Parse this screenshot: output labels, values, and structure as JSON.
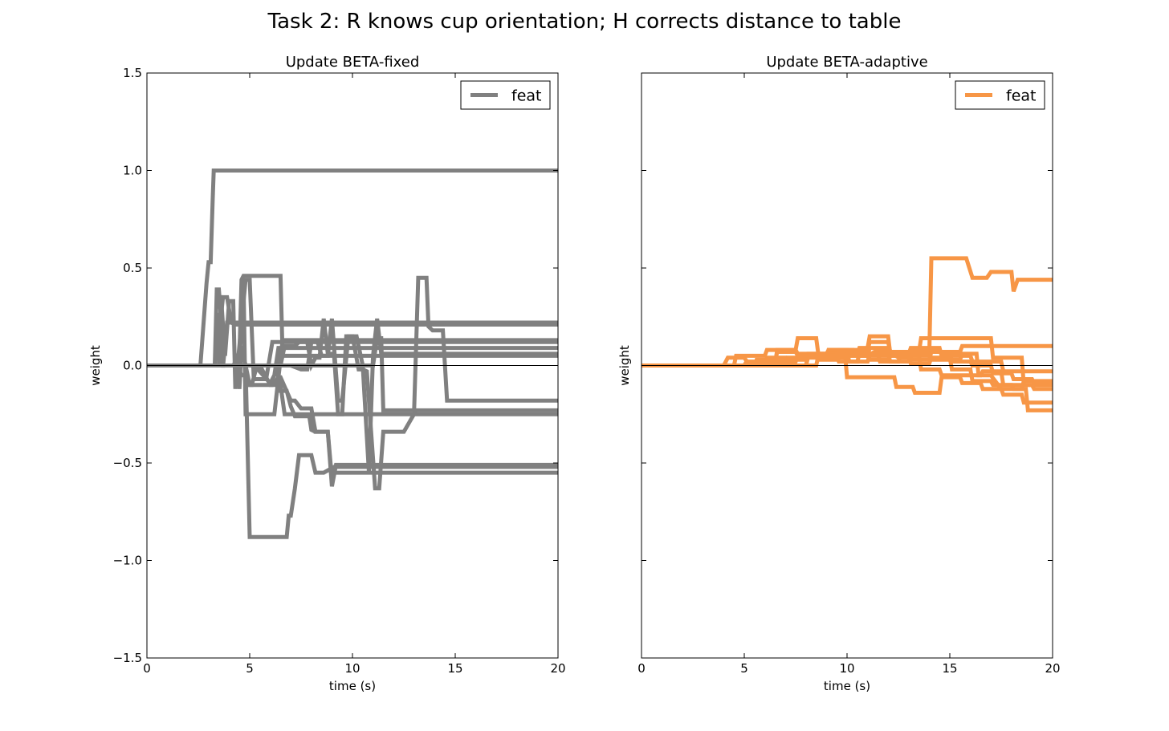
{
  "figure": {
    "title": "Task 2: R knows cup orientation; H corrects distance to table"
  },
  "chart_data": [
    {
      "type": "line",
      "title": "Update BETA-fixed",
      "xlabel": "time (s)",
      "ylabel": "weight",
      "xlim": [
        0,
        20
      ],
      "ylim": [
        -1.5,
        1.5
      ],
      "xticks": [
        0,
        5,
        10,
        15,
        20
      ],
      "xtick_labels": [
        "0",
        "5",
        "10",
        "15",
        "20"
      ],
      "yticks": [
        1.5,
        1.0,
        0.5,
        0.0,
        -0.5,
        -1.0,
        -1.5
      ],
      "ytick_labels": [
        "1.5",
        "1.0",
        "0.5",
        "0.0",
        "−0.5",
        "−1.0",
        "−1.5"
      ],
      "legend": {
        "label": "feat",
        "position": "top-right"
      },
      "color": "#808080",
      "zero_line": true,
      "series": [
        {
          "x": [
            0,
            2.6,
            2.9,
            3.0,
            3.1,
            3.2,
            3.25,
            20
          ],
          "y": [
            0,
            0,
            0.42,
            0.53,
            0.53,
            0.85,
            1.0,
            1.0
          ]
        },
        {
          "x": [
            0,
            3.3,
            3.4,
            3.5,
            3.6,
            3.7,
            3.9,
            4.1,
            20
          ],
          "y": [
            0,
            0,
            0.39,
            0.39,
            0.25,
            0.35,
            0.35,
            0.22,
            0.22
          ]
        },
        {
          "x": [
            0,
            3.3,
            3.5,
            3.7,
            3.9,
            4.1,
            4.3,
            4.4,
            20
          ],
          "y": [
            0,
            0,
            0.27,
            -0.01,
            0.22,
            0.22,
            0.21,
            0.21,
            0.21
          ]
        },
        {
          "x": [
            0,
            3.5,
            3.6,
            3.8,
            4.0,
            4.2,
            4.3,
            4.8,
            5.0,
            5.2,
            5.8,
            6.1,
            6.4,
            20
          ],
          "y": [
            0,
            0,
            0.36,
            0.05,
            0.33,
            0.33,
            -0.12,
            0.44,
            0.44,
            -0.07,
            -0.07,
            0.12,
            0.12,
            0.12
          ]
        },
        {
          "x": [
            0,
            4.3,
            4.4,
            4.5,
            4.6,
            5.0,
            5.1,
            5.3,
            5.4,
            6.0,
            6.2,
            6.4,
            7.0,
            20
          ],
          "y": [
            0,
            0,
            0.06,
            -0.12,
            0.1,
            -0.1,
            -0.1,
            -0.02,
            -0.02,
            -0.09,
            -0.05,
            0.09,
            0.09,
            0.09
          ]
        },
        {
          "x": [
            0,
            4.2,
            4.5,
            4.6,
            4.7,
            5.3,
            6.5,
            6.6,
            20
          ],
          "y": [
            0,
            0,
            0.05,
            0.44,
            0.46,
            0.46,
            0.46,
            0.05,
            0.05
          ]
        },
        {
          "x": [
            0,
            4.4,
            4.6,
            4.8,
            4.9,
            5.5,
            6.5,
            6.7,
            7.0,
            20
          ],
          "y": [
            0,
            0,
            -0.05,
            -0.05,
            -0.1,
            -0.1,
            -0.1,
            -0.25,
            -0.25,
            -0.25
          ]
        },
        {
          "x": [
            0,
            4.5,
            4.7,
            4.8,
            5.0,
            5.5,
            6.2,
            6.6,
            6.8,
            20
          ],
          "y": [
            0,
            0,
            0.44,
            -0.25,
            -0.25,
            -0.25,
            -0.25,
            0.13,
            0.13,
            0.13
          ]
        },
        {
          "x": [
            0,
            4.8,
            5.0,
            5.4,
            6.8,
            6.9,
            7.0,
            7.2,
            7.4,
            7.7,
            8.0,
            8.2,
            8.6,
            9.1,
            20
          ],
          "y": [
            0,
            0,
            -0.88,
            -0.88,
            -0.88,
            -0.77,
            -0.77,
            -0.63,
            -0.46,
            -0.46,
            -0.46,
            -0.55,
            -0.55,
            -0.52,
            -0.52
          ]
        },
        {
          "x": [
            0,
            5.5,
            6.0,
            6.1,
            6.4,
            6.5,
            7.0,
            7.2,
            7.5,
            7.7,
            8.0,
            8.2,
            8.8,
            9.0,
            9.1,
            9.3,
            9.6,
            9.8,
            10.0,
            10.3,
            10.4,
            10.5,
            10.6,
            10.7,
            20
          ],
          "y": [
            0,
            0,
            -0.1,
            -0.1,
            -0.06,
            -0.06,
            -0.18,
            -0.18,
            -0.22,
            -0.22,
            -0.22,
            -0.34,
            -0.34,
            -0.58,
            -0.55,
            -0.55,
            -0.55,
            -0.55,
            -0.55,
            -0.55,
            -0.55,
            -0.55,
            -0.55,
            -0.55,
            -0.55
          ]
        },
        {
          "x": [
            0,
            6.3,
            6.5,
            6.8,
            7.0,
            7.2,
            7.5,
            7.9,
            8.0,
            8.2,
            8.5,
            8.8,
            9.0,
            9.2,
            9.4,
            9.6,
            9.8,
            10.0,
            10.1,
            20
          ],
          "y": [
            0,
            0,
            -0.13,
            -0.13,
            -0.21,
            -0.26,
            -0.26,
            -0.26,
            -0.33,
            -0.34,
            -0.34,
            -0.34,
            -0.62,
            -0.51,
            -0.51,
            -0.51,
            -0.51,
            -0.51,
            -0.51,
            -0.51
          ]
        },
        {
          "x": [
            0,
            6.5,
            6.7,
            7.2,
            7.4,
            7.8,
            8.0,
            8.2,
            8.4,
            8.6,
            8.8,
            9.1,
            9.3,
            9.5,
            9.7,
            9.9,
            10.0,
            10.3,
            10.5,
            10.7,
            11.1,
            11.3,
            11.5,
            12.5,
            13.1,
            13.4,
            20
          ],
          "y": [
            0,
            0,
            0.1,
            0.1,
            0.12,
            0.12,
            0.0,
            0.04,
            0.04,
            0.24,
            0.06,
            0.06,
            -0.25,
            -0.25,
            0.15,
            0.15,
            0.15,
            -0.02,
            -0.02,
            -0.03,
            -0.63,
            -0.63,
            -0.34,
            -0.34,
            -0.23,
            -0.23,
            -0.23
          ]
        },
        {
          "x": [
            0,
            7.0,
            7.5,
            7.8,
            8.0,
            8.3,
            8.5,
            8.8,
            9.0,
            9.3,
            9.5,
            9.8,
            10.2,
            10.5,
            10.8,
            11.0,
            11.2,
            11.4,
            11.6,
            20
          ],
          "y": [
            0,
            0,
            -0.02,
            -0.02,
            0.12,
            0.12,
            0.05,
            0.05,
            0.24,
            -0.18,
            -0.18,
            0.15,
            0.15,
            0.0,
            -0.55,
            0.05,
            0.24,
            0.06,
            0.06,
            0.06
          ]
        },
        {
          "x": [
            0,
            11.0,
            11.2,
            11.4,
            11.5,
            12.0,
            12.5,
            13.0,
            13.2,
            13.6,
            13.7,
            13.9,
            14.4,
            14.6,
            20
          ],
          "y": [
            0,
            0,
            0.14,
            0.14,
            -0.23,
            -0.23,
            -0.23,
            -0.23,
            0.45,
            0.45,
            0.2,
            0.18,
            0.18,
            -0.18,
            -0.18
          ]
        }
      ]
    },
    {
      "type": "line",
      "title": "Update BETA-adaptive",
      "xlabel": "time (s)",
      "ylabel": "weight",
      "xlim": [
        0,
        20
      ],
      "ylim": [
        -1.5,
        1.5
      ],
      "xticks": [
        0,
        5,
        10,
        15,
        20
      ],
      "xtick_labels": [
        "0",
        "5",
        "10",
        "15",
        "20"
      ],
      "legend": {
        "label": "feat",
        "position": "top-right"
      },
      "color": "#F79646",
      "zero_line": true,
      "series": [
        {
          "x": [
            0,
            3.4,
            3.5,
            5.5,
            5.6,
            7.0,
            7.1,
            8.0,
            8.1,
            9.5,
            9.6,
            10.5,
            10.6,
            11.5,
            11.6,
            13.9,
            14.0,
            14.1,
            15.8,
            16.1,
            16.8,
            17.0,
            18.0,
            18.1,
            18.3,
            18.5,
            20
          ],
          "y": [
            0,
            0,
            0.0,
            0.0,
            0.02,
            0.02,
            0.04,
            0.04,
            0.05,
            0.05,
            0.05,
            0.05,
            0.05,
            0.05,
            0.05,
            0.05,
            0.05,
            0.55,
            0.55,
            0.45,
            0.45,
            0.48,
            0.48,
            0.38,
            0.44,
            0.44,
            0.44
          ]
        },
        {
          "x": [
            0,
            4.0,
            4.2,
            5.0,
            5.2,
            6.5,
            6.6,
            7.5,
            7.6,
            8.5,
            8.6,
            10.5,
            10.6,
            11.0,
            11.1,
            12.0,
            12.1,
            13.0,
            13.1,
            14.5,
            14.6,
            16.0,
            16.1,
            17.5,
            17.6,
            19.5,
            20
          ],
          "y": [
            0,
            0,
            0.04,
            0.04,
            0.01,
            0.01,
            0.08,
            0.08,
            0.14,
            0.14,
            0.06,
            0.06,
            0.09,
            0.09,
            0.15,
            0.15,
            0.06,
            0.06,
            0.09,
            0.09,
            0.05,
            0.05,
            0.02,
            0.02,
            -0.03,
            -0.03,
            -0.03
          ]
        },
        {
          "x": [
            0,
            4.5,
            4.6,
            6.0,
            6.1,
            7.5,
            7.6,
            9.0,
            9.1,
            11.0,
            11.1,
            12.0,
            12.1,
            13.5,
            13.6,
            15.0,
            15.1,
            17.0,
            17.1,
            18.5,
            18.6,
            20
          ],
          "y": [
            0,
            0,
            0.05,
            0.05,
            0.08,
            0.08,
            0.06,
            0.06,
            0.08,
            0.08,
            0.12,
            0.12,
            0.07,
            0.07,
            0.14,
            0.14,
            0.14,
            0.14,
            0.04,
            0.04,
            -0.1,
            -0.1
          ]
        },
        {
          "x": [
            0,
            5.0,
            5.1,
            6.5,
            6.6,
            7.5,
            7.6,
            8.5,
            8.6,
            9.5,
            9.6,
            10.3,
            10.5,
            11.0,
            11.5,
            12.0,
            12.5,
            13.0,
            13.5,
            15.5,
            15.6,
            16.0,
            16.5,
            17.0,
            17.5,
            18.0,
            19.0,
            20
          ],
          "y": [
            0,
            0,
            0.02,
            0.02,
            0.07,
            0.07,
            0.05,
            0.05,
            0.05,
            0.05,
            0.08,
            0.08,
            0.05,
            0.05,
            0.08,
            0.08,
            0.04,
            0.04,
            0.07,
            0.07,
            0.1,
            0.1,
            0.1,
            0.1,
            0.1,
            0.1,
            0.1,
            0.1
          ]
        },
        {
          "x": [
            0,
            5.5,
            5.6,
            6.5,
            6.6,
            8.0,
            8.1,
            9.0,
            9.1,
            10.0,
            10.1,
            11.0,
            11.1,
            12.0,
            12.1,
            13.0,
            13.1,
            14.0,
            14.1,
            15.5,
            15.6,
            16.3,
            16.4,
            17.0,
            17.5,
            18.5,
            18.6,
            20
          ],
          "y": [
            0,
            0,
            0.03,
            0.03,
            0.0,
            0.0,
            0.05,
            0.05,
            0.08,
            0.08,
            0.02,
            0.02,
            0.06,
            0.06,
            0.02,
            0.02,
            0.07,
            0.07,
            0.03,
            0.03,
            0.06,
            0.06,
            -0.05,
            -0.05,
            -0.12,
            -0.12,
            -0.08,
            -0.08
          ]
        },
        {
          "x": [
            0,
            6.0,
            6.1,
            7.0,
            7.1,
            8.5,
            8.6,
            9.5,
            9.6,
            10.5,
            10.6,
            11.5,
            11.6,
            12.5,
            12.6,
            13.5,
            13.6,
            14.5,
            14.6,
            16.5,
            16.6,
            17.5,
            17.6,
            18.0,
            19.0,
            19.1,
            20
          ],
          "y": [
            0,
            0,
            0.04,
            0.04,
            0.0,
            0.0,
            0.05,
            0.05,
            0.02,
            0.02,
            0.06,
            0.06,
            0.02,
            0.02,
            0.05,
            0.05,
            -0.02,
            -0.02,
            -0.05,
            -0.05,
            -0.03,
            -0.03,
            -0.1,
            -0.1,
            -0.1,
            -0.12,
            -0.12
          ]
        },
        {
          "x": [
            0,
            6.5,
            6.6,
            7.5,
            7.6,
            8.5,
            8.6,
            9.5,
            9.6,
            9.9,
            10.0,
            11.5,
            11.6,
            12.3,
            12.4,
            13.2,
            13.3,
            14.5,
            14.6,
            15.5,
            15.6,
            16.5,
            16.6,
            17.5,
            17.6,
            18.5,
            18.6,
            20
          ],
          "y": [
            0,
            0,
            0.02,
            0.02,
            0.05,
            0.05,
            0.03,
            0.03,
            0.06,
            0.06,
            -0.06,
            -0.06,
            -0.06,
            -0.06,
            -0.11,
            -0.11,
            -0.14,
            -0.14,
            -0.06,
            -0.06,
            -0.09,
            -0.09,
            -0.12,
            -0.12,
            -0.15,
            -0.15,
            -0.19,
            -0.19
          ]
        },
        {
          "x": [
            0,
            7.0,
            7.1,
            8.0,
            8.1,
            9.0,
            9.1,
            10.0,
            10.1,
            11.0,
            11.1,
            12.0,
            12.1,
            13.0,
            13.1,
            14.0,
            14.1,
            15.0,
            15.1,
            16.0,
            16.1,
            17.0,
            17.1,
            18.0,
            18.1,
            18.7,
            18.8,
            20
          ],
          "y": [
            0,
            0,
            0.03,
            0.03,
            0.06,
            0.06,
            0.04,
            0.04,
            0.07,
            0.07,
            0.03,
            0.03,
            0.05,
            0.05,
            0.01,
            0.01,
            0.04,
            0.04,
            -0.02,
            -0.02,
            -0.08,
            -0.08,
            -0.1,
            -0.1,
            -0.12,
            -0.12,
            -0.23,
            -0.23
          ]
        },
        {
          "x": [
            0,
            8.0,
            8.1,
            9.0,
            9.1,
            10.0,
            10.1,
            11.0,
            11.1,
            12.0,
            12.1,
            13.0,
            13.1,
            14.0,
            14.1,
            15.0,
            15.1,
            16.0,
            16.1,
            17.0,
            17.1,
            18.0,
            18.1,
            19.0,
            19.1,
            20
          ],
          "y": [
            0,
            0,
            0.04,
            0.04,
            0.08,
            0.08,
            0.05,
            0.05,
            0.09,
            0.09,
            0.06,
            0.06,
            0.03,
            0.03,
            0.07,
            0.07,
            0.02,
            0.02,
            0.0,
            0.0,
            -0.04,
            -0.04,
            -0.07,
            -0.07,
            -0.09,
            -0.09
          ]
        }
      ]
    }
  ]
}
